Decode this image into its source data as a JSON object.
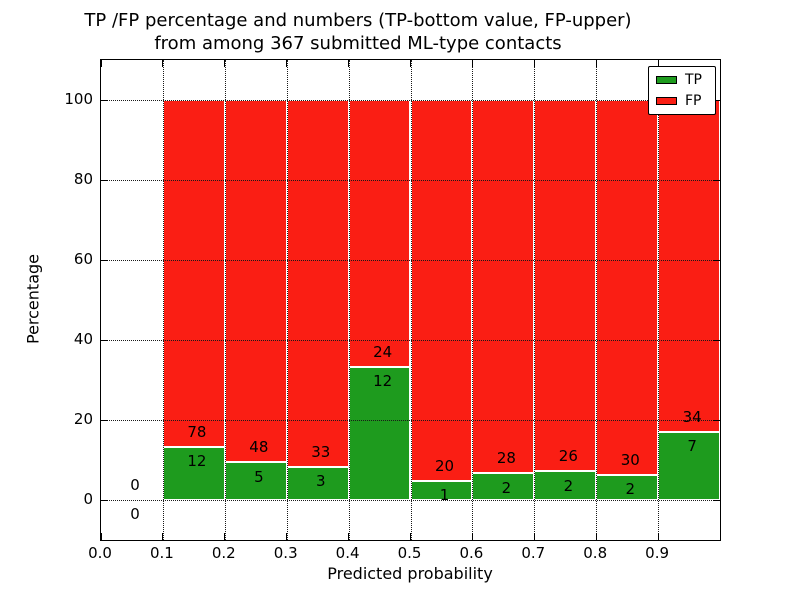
{
  "figure": {
    "title_line1": "TP /FP percentage and numbers (TP-bottom value, FP-upper)",
    "title_line2": "from among 367 submitted ML-type contacts",
    "xlabel": "Predicted probability",
    "ylabel": "Percentage"
  },
  "legend": {
    "entries": [
      {
        "label": "TP",
        "color": "#1e9b1e"
      },
      {
        "label": "FP",
        "color": "#fa1e14"
      }
    ]
  },
  "colors": {
    "tp": "#1e9b1e",
    "fp": "#fa1e14",
    "bar_edge": "#ffffff",
    "grid": "#1a1a1a",
    "text": "#000000",
    "background": "#ffffff"
  },
  "chart_data": {
    "type": "bar",
    "stacking": "percentage-stacked",
    "title": "TP /FP percentage and numbers (TP-bottom value, FP-upper)\nfrom among 367 submitted ML-type contacts",
    "xlabel": "Predicted probability",
    "ylabel": "Percentage",
    "total_contacts": 367,
    "xlim": [
      0.0,
      1.0
    ],
    "ylim": [
      -10,
      110
    ],
    "xticks": [
      "0.0",
      "0.1",
      "0.2",
      "0.3",
      "0.4",
      "0.5",
      "0.6",
      "0.7",
      "0.8",
      "0.9"
    ],
    "yticks": [
      0,
      20,
      40,
      60,
      80,
      100
    ],
    "grid": "dotted, drawn above bars",
    "legend_position": "upper right",
    "bin_width": 0.1,
    "bins": [
      {
        "x_start": 0.0,
        "x_end": 0.1,
        "tp_count": 0,
        "fp_count": 0
      },
      {
        "x_start": 0.1,
        "x_end": 0.2,
        "tp_count": 12,
        "fp_count": 78
      },
      {
        "x_start": 0.2,
        "x_end": 0.3,
        "tp_count": 5,
        "fp_count": 48
      },
      {
        "x_start": 0.3,
        "x_end": 0.4,
        "tp_count": 3,
        "fp_count": 33
      },
      {
        "x_start": 0.4,
        "x_end": 0.5,
        "tp_count": 12,
        "fp_count": 24
      },
      {
        "x_start": 0.5,
        "x_end": 0.6,
        "tp_count": 1,
        "fp_count": 20
      },
      {
        "x_start": 0.6,
        "x_end": 0.7,
        "tp_count": 2,
        "fp_count": 28
      },
      {
        "x_start": 0.7,
        "x_end": 0.8,
        "tp_count": 2,
        "fp_count": 26
      },
      {
        "x_start": 0.8,
        "x_end": 0.9,
        "tp_count": 2,
        "fp_count": 30
      },
      {
        "x_start": 0.9,
        "x_end": 1.0,
        "tp_count": 7,
        "fp_count": 34
      }
    ],
    "series": [
      {
        "name": "TP",
        "color": "#1e9b1e",
        "counts": [
          0,
          12,
          5,
          3,
          12,
          1,
          2,
          2,
          2,
          7
        ]
      },
      {
        "name": "FP",
        "color": "#fa1e14",
        "counts": [
          0,
          78,
          48,
          33,
          24,
          20,
          28,
          26,
          30,
          34
        ]
      }
    ]
  }
}
